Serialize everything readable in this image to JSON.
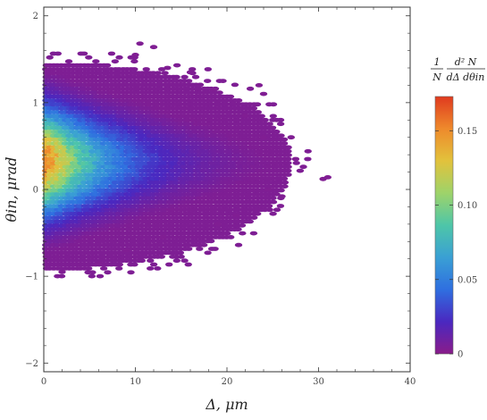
{
  "chart_data": {
    "type": "heatmap",
    "title": "",
    "xlabel": "Δ, μm",
    "ylabel": "θin, μrad",
    "xlim": [
      0,
      40
    ],
    "ylim": [
      -2.1,
      2.1
    ],
    "x_ticks": [
      0,
      10,
      20,
      30,
      40
    ],
    "y_ticks": [
      -2,
      -1,
      0,
      1,
      2
    ],
    "x_tick_labels": [
      "0",
      "10",
      "20",
      "30",
      "40"
    ],
    "y_tick_labels": [
      "−2",
      "−1",
      "0",
      "1",
      "2"
    ],
    "density_model": {
      "peak_x": 1.5,
      "peak_y": 0.32,
      "peak_value": 0.17,
      "x_extent_max": 31,
      "y_extent": [
        -1.0,
        1.7
      ]
    },
    "colorbar": {
      "title_numerator_left": "1",
      "title_denominator_left": "N",
      "title_numerator_right": "d² N",
      "title_denominator_right": "dΔ dθin",
      "range": [
        0,
        0.173
      ],
      "ticks": [
        0,
        0.05,
        0.1,
        0.15
      ],
      "tick_labels": [
        "0",
        "0.05",
        "0.10",
        "0.15"
      ],
      "colormap": [
        "#8a1c8a",
        "#4a28c0",
        "#2f6fe0",
        "#3aa0d4",
        "#4ec6a8",
        "#9ed36a",
        "#e2c23c",
        "#ee8a2c",
        "#e03a1f"
      ]
    },
    "grid": false,
    "legend": "colorbar-right"
  }
}
